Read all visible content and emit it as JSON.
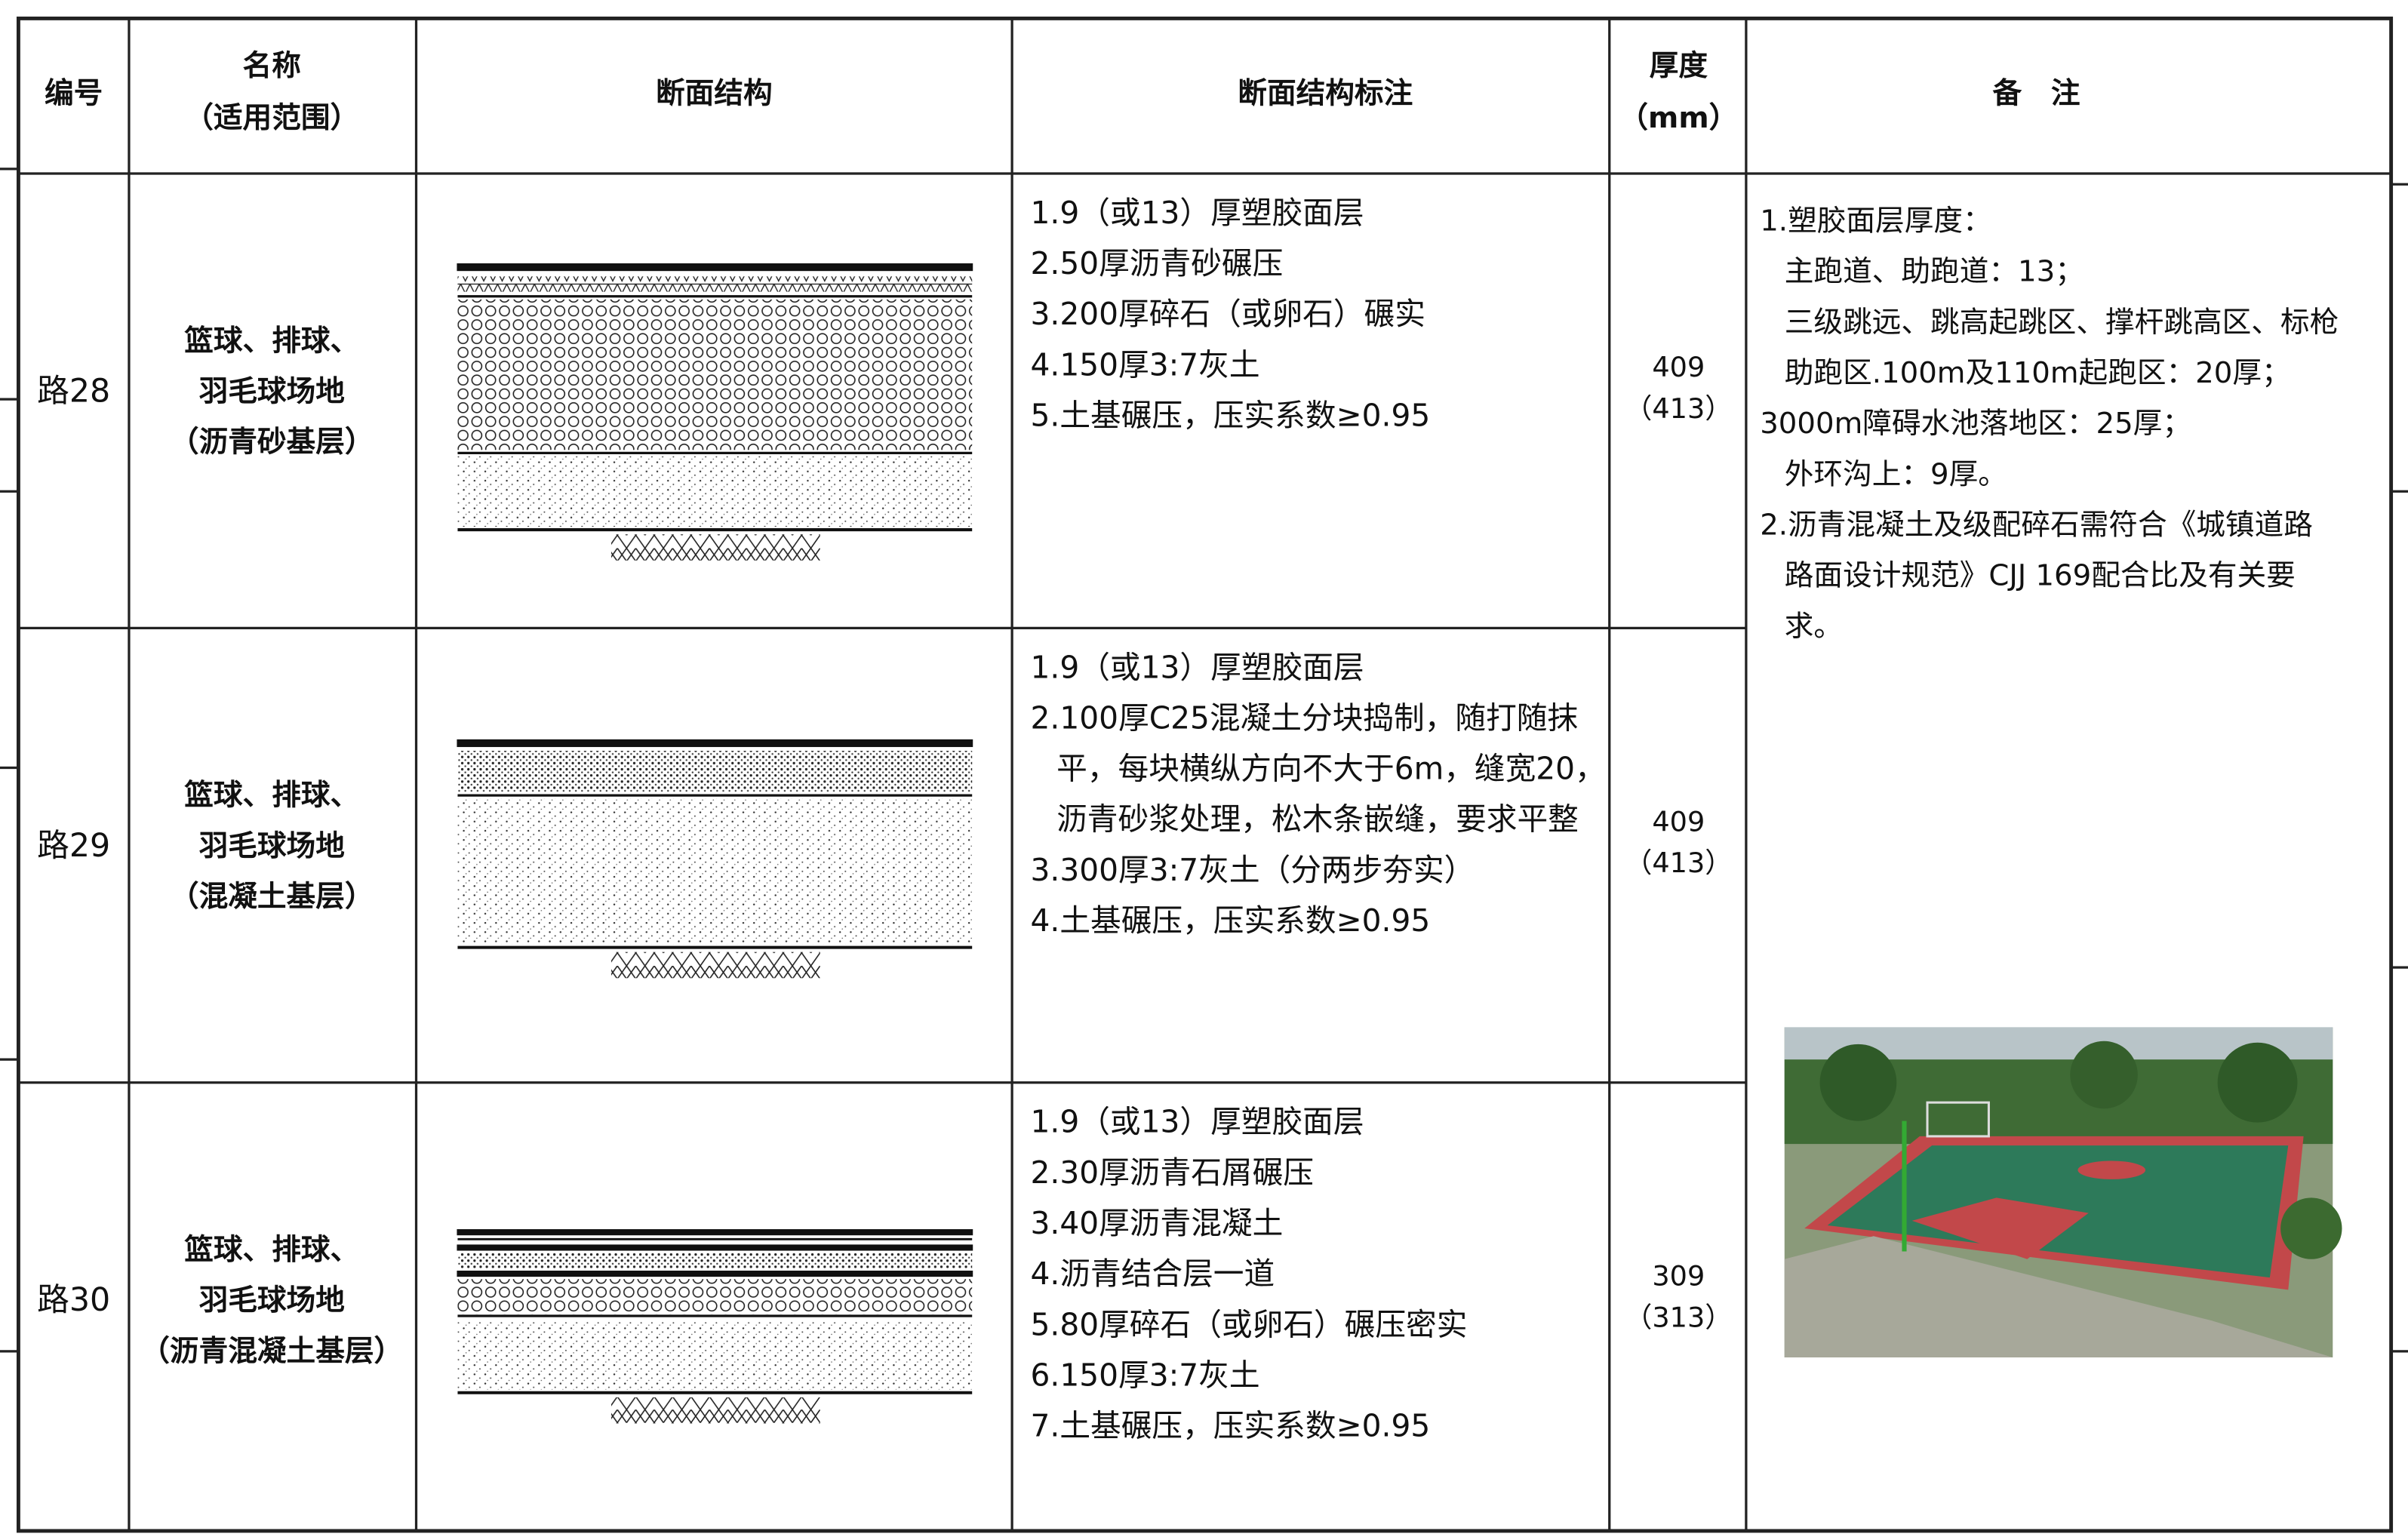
{
  "table": {
    "headers": [
      {
        "lines": [
          "编号"
        ]
      },
      {
        "lines": [
          "名称",
          "（适用范围）"
        ]
      },
      {
        "lines": [
          "断面结构"
        ]
      },
      {
        "lines": [
          "断面结构标注"
        ]
      },
      {
        "lines": [
          "厚度",
          "（mm）"
        ]
      },
      {
        "lines": [
          "备　注"
        ]
      }
    ],
    "rows": [
      {
        "id": "路28",
        "name": [
          "篮球、排球、",
          "羽毛球场地",
          "（沥青砂基层）"
        ],
        "notes": [
          "1.9（或13）厚塑胶面层",
          "2.50厚沥青砂碾压",
          "3.200厚碎石（或卵石）碾实",
          "4.150厚3:7灰土",
          "5.土基碾压，压实系数≥0.95"
        ],
        "thickness": [
          "409",
          "（413）"
        ]
      },
      {
        "id": "路29",
        "name": [
          "篮球、排球、",
          "羽毛球场地",
          "（混凝土基层）"
        ],
        "notes": [
          "1.9（或13）厚塑胶面层",
          "2.100厚C25混凝土分块捣制，随打随抹",
          "平，每块横纵方向不大于6m，缝宽20，",
          "沥青砂浆处理，松木条嵌缝，要求平整",
          "3.300厚3:7灰土（分两步夯实）",
          "4.土基碾压，压实系数≥0.95"
        ],
        "thickness": [
          "409",
          "（413）"
        ]
      },
      {
        "id": "路30",
        "name": [
          "篮球、排球、",
          "羽毛球场地",
          "（沥青混凝土基层）"
        ],
        "notes": [
          "1.9（或13）厚塑胶面层",
          "2.30厚沥青石屑碾压",
          "3.40厚沥青混凝土",
          "4.沥青结合层一道",
          "5.80厚碎石（或卵石）碾压密实",
          "6.150厚3:7灰土",
          "7.土基碾压，压实系数≥0.95"
        ],
        "thickness": [
          "309",
          "（313）"
        ]
      }
    ],
    "remarks": [
      "1.塑胶面层厚度：",
      "主跑道、助跑道：13；",
      "三级跳远、跳高起跳区、撑杆跳高区、标枪",
      "助跑区.100m及110m起跑区：20厚；",
      "3000m障碍水池落地区：25厚；",
      "外环沟上：9厚。",
      "2.沥青混凝土及级配碎石需符合《城镇道路",
      "路面设计规范》CJJ  169配合比及有关要",
      "求。"
    ]
  }
}
